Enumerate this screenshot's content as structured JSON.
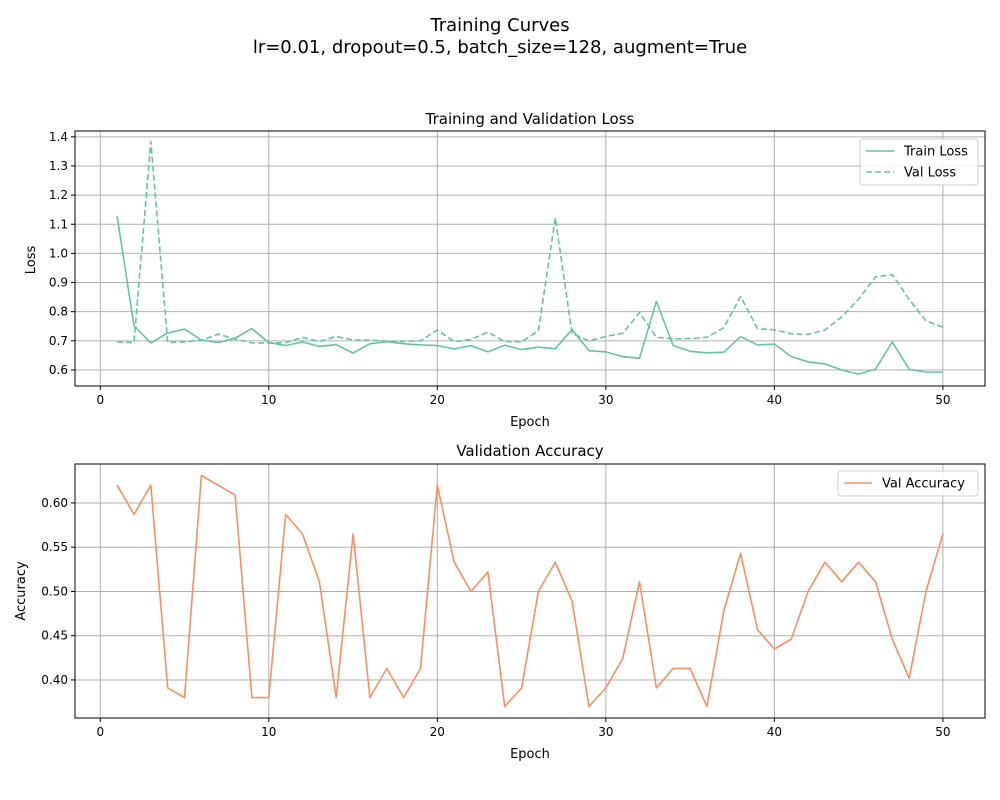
{
  "figure": {
    "title_line1": "Training Curves",
    "title_line2": "lr=0.01, dropout=0.5, batch_size=128, augment=True"
  },
  "colors": {
    "loss": "#66c2a5",
    "accuracy": "#fc8d62"
  },
  "chart_data": [
    {
      "type": "line",
      "title": "Training and Validation Loss",
      "xlabel": "Epoch",
      "ylabel": "Loss",
      "xlim": [
        -1.5,
        52.5
      ],
      "ylim": [
        0.545,
        1.42
      ],
      "xticks": [
        0,
        10,
        20,
        30,
        40,
        50
      ],
      "yticks": [
        0.6,
        0.7,
        0.8,
        0.9,
        1.0,
        1.1,
        1.2,
        1.3,
        1.4
      ],
      "ytick_labels": [
        "0.6",
        "0.7",
        "0.8",
        "0.9",
        "1.0",
        "1.1",
        "1.2",
        "1.3",
        "1.4"
      ],
      "grid": true,
      "legend_position": "top-right",
      "x": [
        1,
        2,
        3,
        4,
        5,
        6,
        7,
        8,
        9,
        10,
        11,
        12,
        13,
        14,
        15,
        16,
        17,
        18,
        19,
        20,
        21,
        22,
        23,
        24,
        25,
        26,
        27,
        28,
        29,
        30,
        31,
        32,
        33,
        34,
        35,
        36,
        37,
        38,
        39,
        40,
        41,
        42,
        43,
        44,
        45,
        46,
        47,
        48,
        49,
        50
      ],
      "series": [
        {
          "name": "Train Loss",
          "style": "solid",
          "values": [
            1.128,
            0.752,
            0.693,
            0.727,
            0.74,
            0.703,
            0.694,
            0.709,
            0.742,
            0.694,
            0.684,
            0.696,
            0.681,
            0.687,
            0.658,
            0.69,
            0.697,
            0.69,
            0.686,
            0.684,
            0.672,
            0.684,
            0.662,
            0.685,
            0.67,
            0.678,
            0.673,
            0.739,
            0.666,
            0.662,
            0.646,
            0.64,
            0.835,
            0.684,
            0.664,
            0.659,
            0.661,
            0.714,
            0.686,
            0.689,
            0.646,
            0.628,
            0.621,
            0.6,
            0.586,
            0.603,
            0.696,
            0.602,
            0.593,
            0.592
          ]
        },
        {
          "name": "Val Loss",
          "style": "dashed",
          "values": [
            0.696,
            0.694,
            1.384,
            0.695,
            0.696,
            0.702,
            0.723,
            0.706,
            0.693,
            0.693,
            0.694,
            0.712,
            0.698,
            0.715,
            0.703,
            0.703,
            0.698,
            0.698,
            0.7,
            0.737,
            0.697,
            0.705,
            0.73,
            0.697,
            0.697,
            0.734,
            1.122,
            0.725,
            0.7,
            0.715,
            0.726,
            0.797,
            0.712,
            0.707,
            0.708,
            0.712,
            0.745,
            0.852,
            0.742,
            0.738,
            0.724,
            0.722,
            0.737,
            0.782,
            0.843,
            0.92,
            0.927,
            0.842,
            0.768,
            0.747
          ]
        }
      ]
    },
    {
      "type": "line",
      "title": "Validation Accuracy",
      "xlabel": "Epoch",
      "ylabel": "Accuracy",
      "xlim": [
        -1.5,
        52.5
      ],
      "ylim": [
        0.357,
        0.644
      ],
      "xticks": [
        0,
        10,
        20,
        30,
        40,
        50
      ],
      "yticks": [
        0.4,
        0.45,
        0.5,
        0.55,
        0.6
      ],
      "ytick_labels": [
        "0.40",
        "0.45",
        "0.50",
        "0.55",
        "0.60"
      ],
      "grid": true,
      "legend_position": "top-right",
      "x": [
        1,
        2,
        3,
        4,
        5,
        6,
        7,
        8,
        9,
        10,
        11,
        12,
        13,
        14,
        15,
        16,
        17,
        18,
        19,
        20,
        21,
        22,
        23,
        24,
        25,
        26,
        27,
        28,
        29,
        30,
        31,
        32,
        33,
        34,
        35,
        36,
        37,
        38,
        39,
        40,
        41,
        42,
        43,
        44,
        45,
        46,
        47,
        48,
        49,
        50
      ],
      "series": [
        {
          "name": "Val Accuracy",
          "style": "solid",
          "values": [
            0.62,
            0.587,
            0.62,
            0.391,
            0.38,
            0.631,
            0.62,
            0.609,
            0.38,
            0.38,
            0.587,
            0.565,
            0.511,
            0.38,
            0.565,
            0.38,
            0.413,
            0.38,
            0.413,
            0.62,
            0.533,
            0.5,
            0.522,
            0.37,
            0.391,
            0.5,
            0.533,
            0.489,
            0.37,
            0.391,
            0.424,
            0.511,
            0.391,
            0.413,
            0.413,
            0.37,
            0.478,
            0.543,
            0.457,
            0.435,
            0.446,
            0.5,
            0.533,
            0.511,
            0.533,
            0.511,
            0.446,
            0.402,
            0.5,
            0.565
          ]
        }
      ]
    }
  ]
}
